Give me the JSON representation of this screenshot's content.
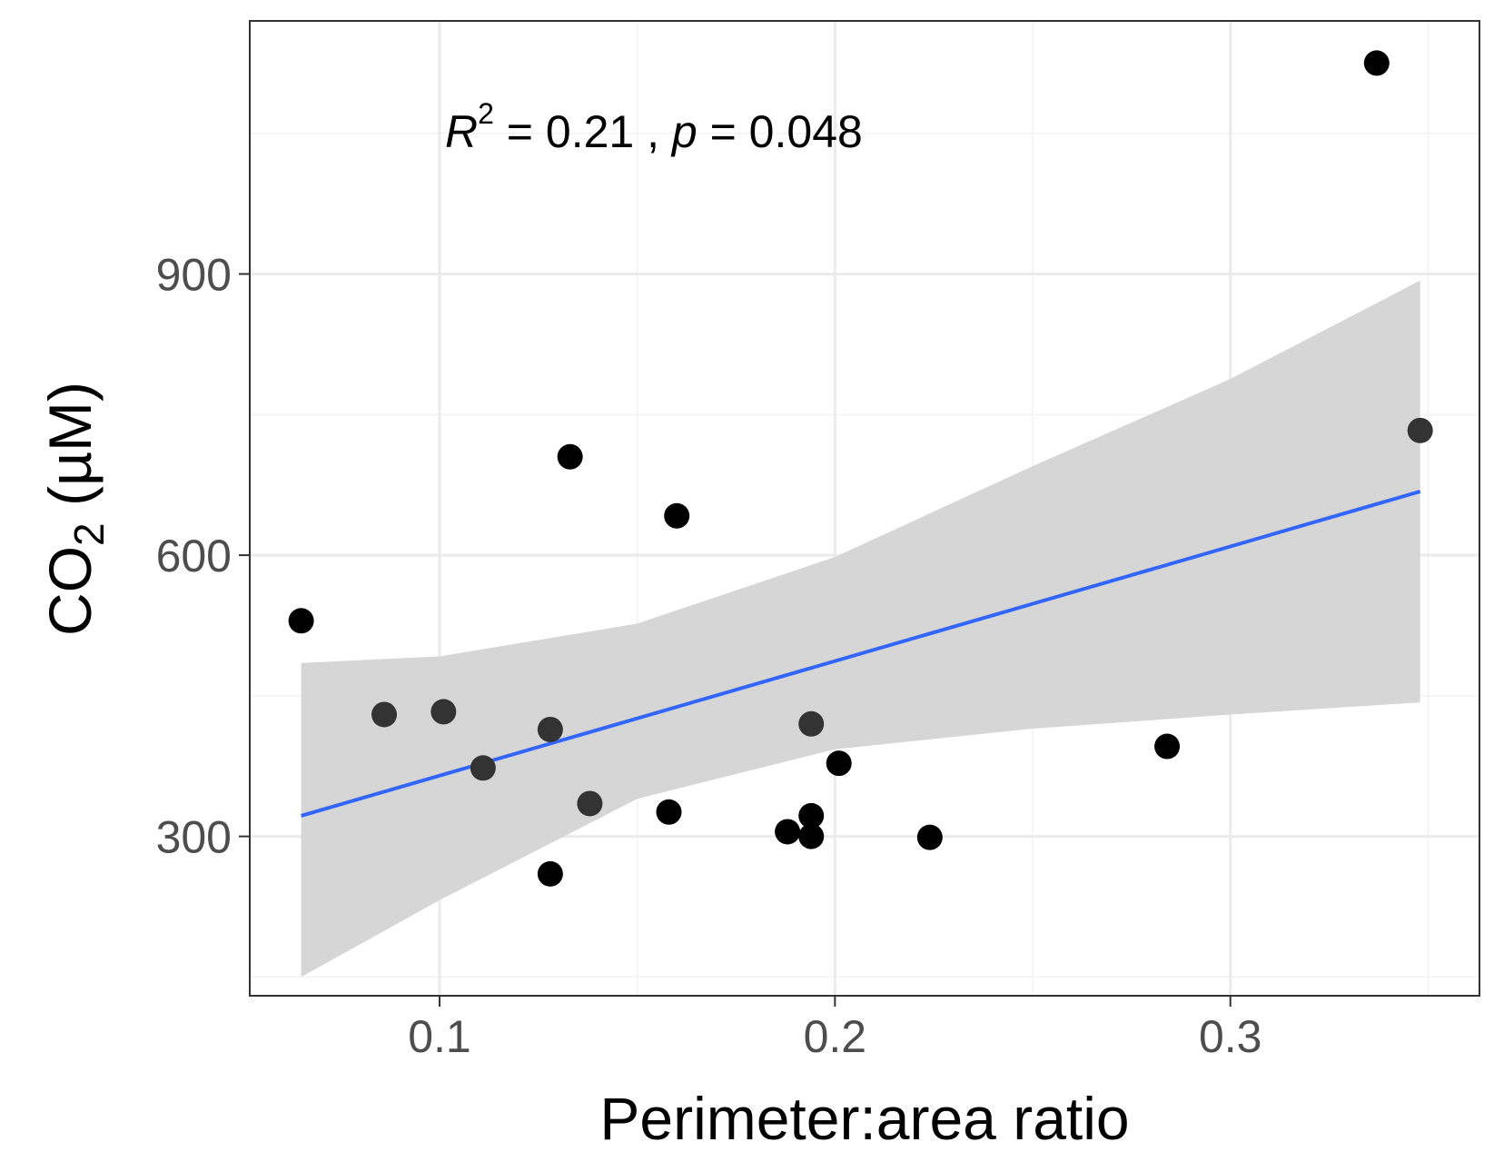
{
  "chart_data": {
    "type": "scatter",
    "xlabel": "Perimeter:area ratio",
    "ylabel": {
      "main": "CO",
      "sub": "2",
      "unit": " (µM)"
    },
    "annotation": {
      "r": "R",
      "sup": "2",
      "eq1": " = 0.21 , ",
      "p": "p",
      "eq2": " = 0.048"
    },
    "xlim": [
      0.052,
      0.363
    ],
    "ylim": [
      130,
      1170
    ],
    "x_ticks": [
      {
        "value": 0.1,
        "label": "0.1"
      },
      {
        "value": 0.2,
        "label": "0.2"
      },
      {
        "value": 0.3,
        "label": "0.3"
      }
    ],
    "y_ticks": [
      {
        "value": 300,
        "label": "300"
      },
      {
        "value": 600,
        "label": "600"
      },
      {
        "value": 900,
        "label": "900"
      }
    ],
    "x_minor": [
      0.05,
      0.15,
      0.25,
      0.35
    ],
    "y_minor": [
      150,
      450,
      750,
      1050
    ],
    "grid": true,
    "points": [
      {
        "x": 0.065,
        "y": 530,
        "c": "#000000"
      },
      {
        "x": 0.086,
        "y": 430,
        "c": "#333333"
      },
      {
        "x": 0.101,
        "y": 433,
        "c": "#333333"
      },
      {
        "x": 0.111,
        "y": 373,
        "c": "#333333"
      },
      {
        "x": 0.128,
        "y": 260,
        "c": "#000000"
      },
      {
        "x": 0.128,
        "y": 414,
        "c": "#333333"
      },
      {
        "x": 0.133,
        "y": 705,
        "c": "#000000"
      },
      {
        "x": 0.138,
        "y": 335,
        "c": "#333333"
      },
      {
        "x": 0.158,
        "y": 326,
        "c": "#000000"
      },
      {
        "x": 0.16,
        "y": 642,
        "c": "#000000"
      },
      {
        "x": 0.188,
        "y": 305,
        "c": "#000000"
      },
      {
        "x": 0.194,
        "y": 300,
        "c": "#000000"
      },
      {
        "x": 0.194,
        "y": 322,
        "c": "#000000"
      },
      {
        "x": 0.194,
        "y": 420,
        "c": "#333333"
      },
      {
        "x": 0.201,
        "y": 378,
        "c": "#000000"
      },
      {
        "x": 0.224,
        "y": 299,
        "c": "#000000"
      },
      {
        "x": 0.284,
        "y": 396,
        "c": "#000000"
      },
      {
        "x": 0.337,
        "y": 1125,
        "c": "#000000"
      },
      {
        "x": 0.348,
        "y": 733,
        "c": "#333333"
      }
    ],
    "fit_line": {
      "x": [
        0.065,
        0.348
      ],
      "y": [
        322,
        668
      ],
      "color": "#3366FF"
    },
    "confidence_band": {
      "color": "#D6D6D6",
      "x": [
        0.065,
        0.1,
        0.15,
        0.2,
        0.25,
        0.3,
        0.348
      ],
      "upper": [
        485,
        492,
        527,
        598,
        695,
        788,
        893
      ],
      "lower": [
        150,
        232,
        340,
        393,
        415,
        430,
        443
      ]
    }
  }
}
